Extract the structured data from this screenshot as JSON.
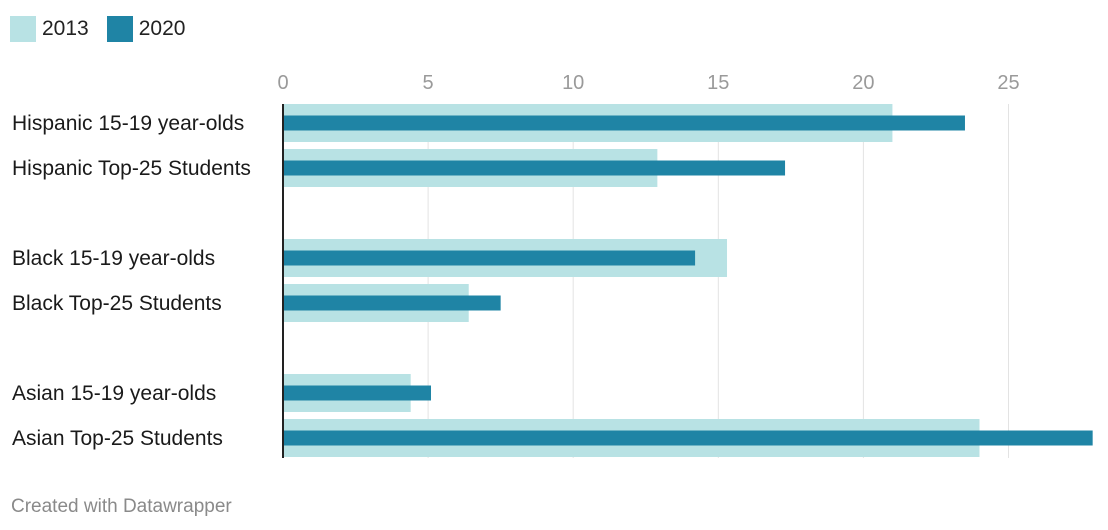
{
  "chart_data": {
    "type": "bar",
    "orientation": "horizontal",
    "categories": [
      "Hispanic 15-19 year-olds",
      "Hispanic Top-25 Students",
      "",
      "Black 15-19 year-olds",
      "Black Top-25 Students",
      "",
      "Asian 15-19 year-olds",
      "Asian Top-25 Students"
    ],
    "series": [
      {
        "name": "2013",
        "color": "#b8e2e4",
        "values": [
          21.0,
          12.9,
          null,
          15.3,
          6.4,
          null,
          4.4,
          24.0
        ]
      },
      {
        "name": "2020",
        "color": "#1f84a5",
        "values": [
          23.5,
          17.3,
          null,
          14.2,
          7.5,
          null,
          5.1,
          27.9
        ]
      }
    ],
    "xlim": [
      0,
      28
    ],
    "xticks": [
      0,
      5,
      10,
      15,
      20,
      25
    ],
    "grid": true,
    "legend_position": "top-left",
    "title": "",
    "xlabel": "",
    "ylabel": ""
  },
  "legend": {
    "items": [
      {
        "label": "2013",
        "color": "#b8e2e4"
      },
      {
        "label": "2020",
        "color": "#1f84a5"
      }
    ]
  },
  "footer": {
    "text": "Created with Datawrapper"
  }
}
